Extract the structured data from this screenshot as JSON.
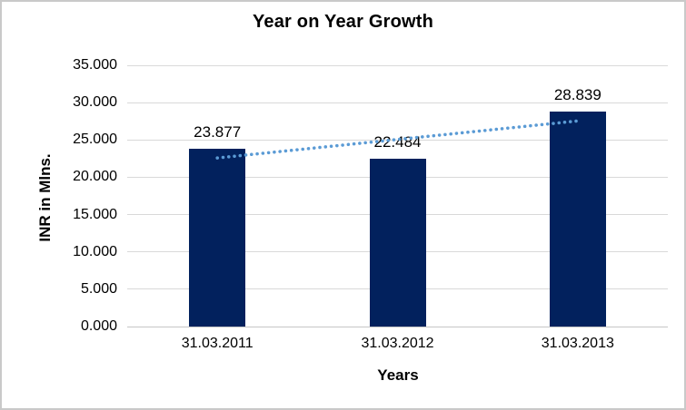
{
  "window": {
    "background": "#FFFFFF",
    "frame_border_color": "#C9C9C9"
  },
  "chart_data": {
    "type": "bar",
    "title": "Year on Year Growth",
    "xlabel": "Years",
    "ylabel": "INR in Mlns.",
    "categories": [
      "31.03.2011",
      "31.03.2012",
      "31.03.2013"
    ],
    "values": [
      23.877,
      22.484,
      28.839
    ],
    "data_labels": [
      "23.877",
      "22.484",
      "28.839"
    ],
    "ylim": [
      0,
      35
    ],
    "y_ticks": [
      0,
      5,
      10,
      15,
      20,
      25,
      30,
      35
    ],
    "y_tick_labels": [
      "0.000",
      "5.000",
      "10.000",
      "15.000",
      "20.000",
      "25.000",
      "30.000",
      "35.000"
    ],
    "grid": "horizontal",
    "legend": "none",
    "trendline": {
      "type": "linear",
      "style": "dotted",
      "start_value": 22.586,
      "end_value": 27.548
    },
    "colors": {
      "bar": "#02215D",
      "gridline": "#D9D9D9",
      "axis_line": "#C6C6C6",
      "trendline": "#5B9BD5",
      "text": "#000000"
    }
  }
}
